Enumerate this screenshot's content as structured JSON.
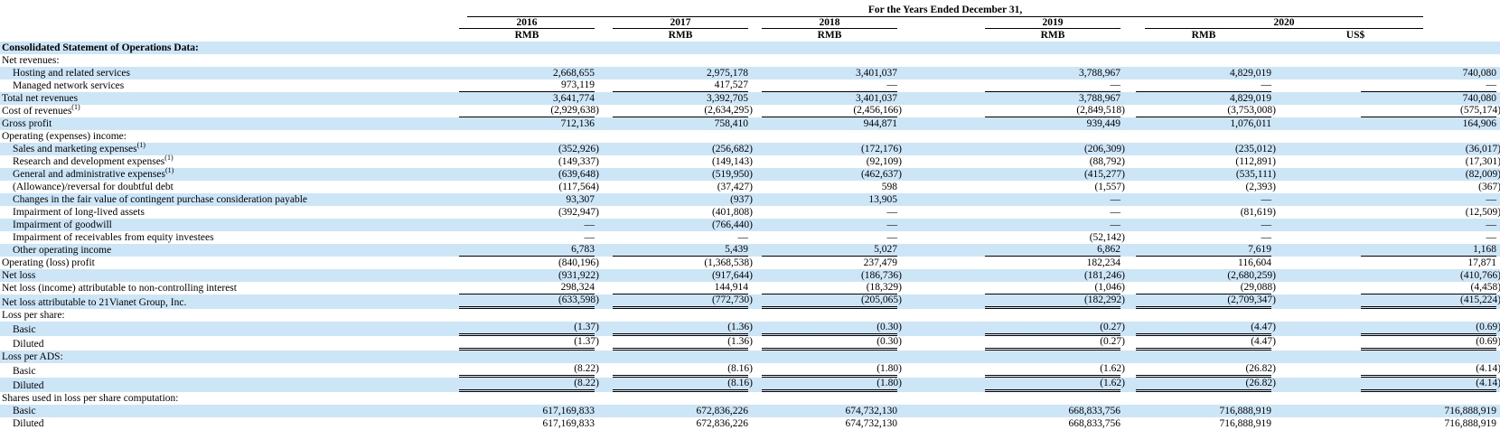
{
  "colors": {
    "stripe": "#cce6f7",
    "rule": "#000000"
  },
  "header": {
    "title": "For the Years Ended December 31,",
    "years": [
      "2016",
      "2017",
      "2018",
      "2019",
      "2020"
    ],
    "currencies": [
      "RMB",
      "RMB",
      "RMB",
      "RMB",
      "RMB",
      "US$"
    ]
  },
  "rows": [
    {
      "label": "Consolidated Statement of Operations Data:",
      "bold": true,
      "indent": 0,
      "sup": "",
      "rule": "none",
      "values": [
        "",
        "",
        "",
        "",
        "",
        ""
      ]
    },
    {
      "label": "Net revenues:",
      "bold": false,
      "indent": 0,
      "sup": "",
      "rule": "none",
      "values": [
        "",
        "",
        "",
        "",
        "",
        ""
      ]
    },
    {
      "label": "Hosting and related services",
      "bold": false,
      "indent": 1,
      "sup": "",
      "rule": "none",
      "values": [
        "2,668,655",
        "2,975,178",
        "3,401,037",
        "3,788,967",
        "4,829,019",
        "740,080"
      ]
    },
    {
      "label": "Managed network services",
      "bold": false,
      "indent": 1,
      "sup": "",
      "rule": "single",
      "values": [
        "973,119",
        "417,527",
        "—",
        "—",
        "—",
        "—"
      ]
    },
    {
      "label": "Total net revenues",
      "bold": false,
      "indent": 0,
      "sup": "",
      "rule": "none",
      "values": [
        "3,641,774",
        "3,392,705",
        "3,401,037",
        "3,788,967",
        "4,829,019",
        "740,080"
      ]
    },
    {
      "label": "Cost of revenues",
      "bold": false,
      "indent": 0,
      "sup": "(1)",
      "rule": "single",
      "values": [
        "(2,929,638)",
        "(2,634,295)",
        "(2,456,166)",
        "(2,849,518)",
        "(3,753,008)",
        "(575,174)"
      ]
    },
    {
      "label": "Gross profit",
      "bold": false,
      "indent": 0,
      "sup": "",
      "rule": "none",
      "values": [
        "712,136",
        "758,410",
        "944,871",
        "939,449",
        "1,076,011",
        "164,906"
      ]
    },
    {
      "label": "Operating (expenses) income:",
      "bold": false,
      "indent": 0,
      "sup": "",
      "rule": "none",
      "values": [
        "",
        "",
        "",
        "",
        "",
        ""
      ]
    },
    {
      "label": "Sales and marketing expenses",
      "bold": false,
      "indent": 1,
      "sup": "(1)",
      "rule": "none",
      "values": [
        "(352,926)",
        "(256,682)",
        "(172,176)",
        "(206,309)",
        "(235,012)",
        "(36,017)"
      ]
    },
    {
      "label": "Research and development expenses",
      "bold": false,
      "indent": 1,
      "sup": "(1)",
      "rule": "none",
      "values": [
        "(149,337)",
        "(149,143)",
        "(92,109)",
        "(88,792)",
        "(112,891)",
        "(17,301)"
      ]
    },
    {
      "label": "General and administrative expenses",
      "bold": false,
      "indent": 1,
      "sup": "(1)",
      "rule": "none",
      "values": [
        "(639,648)",
        "(519,950)",
        "(462,637)",
        "(415,277)",
        "(535,111)",
        "(82,009)"
      ]
    },
    {
      "label": "(Allowance)/reversal for doubtful debt",
      "bold": false,
      "indent": 1,
      "sup": "",
      "rule": "none",
      "values": [
        "(117,564)",
        "(37,427)",
        "598",
        "(1,557)",
        "(2,393)",
        "(367)"
      ]
    },
    {
      "label": "Changes in the fair value of contingent purchase consideration payable",
      "bold": false,
      "indent": 1,
      "sup": "",
      "rule": "none",
      "values": [
        "93,307",
        "(937)",
        "13,905",
        "—",
        "—",
        "—"
      ]
    },
    {
      "label": "Impairment of long-lived assets",
      "bold": false,
      "indent": 1,
      "sup": "",
      "rule": "none",
      "values": [
        "(392,947)",
        "(401,808)",
        "—",
        "—",
        "(81,619)",
        "(12,509)"
      ]
    },
    {
      "label": "Impairment of goodwill",
      "bold": false,
      "indent": 1,
      "sup": "",
      "rule": "none",
      "values": [
        "—",
        "(766,440)",
        "—",
        "—",
        "—",
        "—"
      ]
    },
    {
      "label": "Impairment of receivables from equity investees",
      "bold": false,
      "indent": 1,
      "sup": "",
      "rule": "none",
      "values": [
        "—",
        "—",
        "—",
        "(52,142)",
        "—",
        "—"
      ]
    },
    {
      "label": "Other operating income",
      "bold": false,
      "indent": 1,
      "sup": "",
      "rule": "single",
      "values": [
        "6,783",
        "5,439",
        "5,027",
        "6,862",
        "7,619",
        "1,168"
      ]
    },
    {
      "label": "Operating (loss) profit",
      "bold": false,
      "indent": 0,
      "sup": "",
      "rule": "none",
      "values": [
        "(840,196)",
        "(1,368,538)",
        "237,479",
        "182,234",
        "116,604",
        "17,871"
      ]
    },
    {
      "label": "Net loss",
      "bold": false,
      "indent": 0,
      "sup": "",
      "rule": "none",
      "values": [
        "(931,922)",
        "(917,644)",
        "(186,736)",
        "(181,246)",
        "(2,680,259)",
        "(410,766)"
      ]
    },
    {
      "label": "Net loss (income) attributable to non-controlling interest",
      "bold": false,
      "indent": 0,
      "sup": "",
      "rule": "single",
      "values": [
        "298,324",
        "144,914",
        "(18,329)",
        "(1,046)",
        "(29,088)",
        "(4,458)"
      ]
    },
    {
      "label": "Net loss attributable to 21Vianet Group, Inc.",
      "bold": false,
      "indent": 0,
      "sup": "",
      "rule": "double",
      "values": [
        "(633,598)",
        "(772,730)",
        "(205,065)",
        "(182,292)",
        "(2,709,347)",
        "(415,224)"
      ]
    },
    {
      "label": "Loss per share:",
      "bold": false,
      "indent": 0,
      "sup": "",
      "rule": "none",
      "values": [
        "",
        "",
        "",
        "",
        "",
        ""
      ]
    },
    {
      "label": "Basic",
      "bold": false,
      "indent": 1,
      "sup": "",
      "rule": "double",
      "values": [
        "(1.37)",
        "(1.36)",
        "(0.30)",
        "(0.27)",
        "(4.47)",
        "(0.69)"
      ]
    },
    {
      "label": "Diluted",
      "bold": false,
      "indent": 1,
      "sup": "",
      "rule": "double",
      "values": [
        "(1.37)",
        "(1.36)",
        "(0.30)",
        "(0.27)",
        "(4.47)",
        "(0.69)"
      ]
    },
    {
      "label": "Loss per ADS:",
      "bold": false,
      "indent": 0,
      "sup": "",
      "rule": "none",
      "values": [
        "",
        "",
        "",
        "",
        "",
        ""
      ]
    },
    {
      "label": "Basic",
      "bold": false,
      "indent": 1,
      "sup": "",
      "rule": "double",
      "values": [
        "(8.22)",
        "(8.16)",
        "(1.80)",
        "(1.62)",
        "(26.82)",
        "(4.14)"
      ]
    },
    {
      "label": "Diluted",
      "bold": false,
      "indent": 1,
      "sup": "",
      "rule": "double",
      "values": [
        "(8.22)",
        "(8.16)",
        "(1.80)",
        "(1.62)",
        "(26.82)",
        "(4.14)"
      ]
    },
    {
      "label": "Shares used in loss per share computation:",
      "bold": false,
      "indent": 0,
      "sup": "",
      "rule": "none",
      "values": [
        "",
        "",
        "",
        "",
        "",
        ""
      ]
    },
    {
      "label": "Basic",
      "bold": false,
      "indent": 1,
      "sup": "",
      "rule": "none",
      "values": [
        "617,169,833",
        "672,836,226",
        "674,732,130",
        "668,833,756",
        "716,888,919",
        "716,888,919"
      ]
    },
    {
      "label": "Diluted",
      "bold": false,
      "indent": 1,
      "sup": "",
      "rule": "none",
      "values": [
        "617,169,833",
        "672,836,226",
        "674,732,130",
        "668,833,756",
        "716,888,919",
        "716,888,919"
      ]
    }
  ]
}
